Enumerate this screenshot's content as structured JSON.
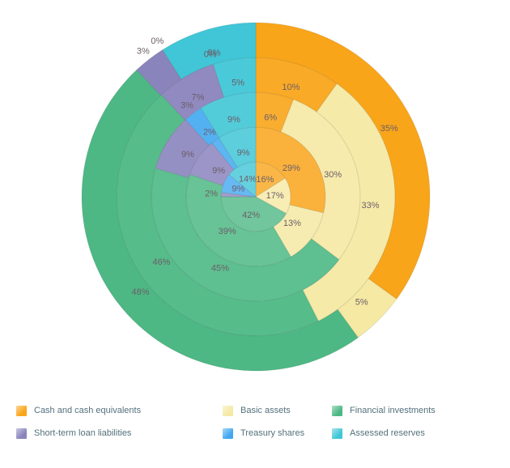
{
  "chart_data": {
    "type": "pie",
    "subtype": "multi-level-donut",
    "title": "",
    "unit": "%",
    "label_format": "{value}%",
    "legend_position": "bottom",
    "background": "#ffffff",
    "label_color": "#6b5e68",
    "categories": [
      {
        "key": "cash",
        "label": "Cash and cash equivalents",
        "color": "#F9A51A"
      },
      {
        "key": "basic",
        "label": "Basic assets",
        "color": "#F5E9A3"
      },
      {
        "key": "financial",
        "label": "Financial investments",
        "color": "#4DB884"
      },
      {
        "key": "loans",
        "label": "Short-term loan liabilities",
        "color": "#8A84BD"
      },
      {
        "key": "treasury",
        "label": "Treasury shares",
        "color": "#41A8F0"
      },
      {
        "key": "reserves",
        "label": "Assessed reserves",
        "color": "#40C6D6"
      }
    ],
    "rings": [
      {
        "name": "ring-1-innermost",
        "values": [
          16,
          17,
          42,
          2,
          9,
          14
        ]
      },
      {
        "name": "ring-2",
        "values": [
          29,
          13,
          39,
          9,
          2,
          9
        ]
      },
      {
        "name": "ring-3",
        "values": [
          6,
          30,
          45,
          9,
          3,
          9
        ]
      },
      {
        "name": "ring-4",
        "values": [
          10,
          33,
          46,
          7,
          0,
          5
        ]
      },
      {
        "name": "ring-5-outermost",
        "values": [
          35,
          5,
          48,
          3,
          0,
          9
        ]
      }
    ]
  }
}
